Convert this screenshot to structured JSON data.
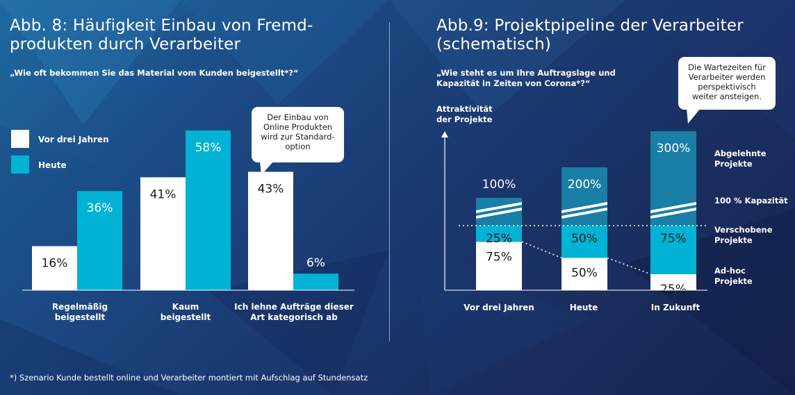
{
  "colors": {
    "white_bar": "#ffffff",
    "cyan_bar": "#00b3d4",
    "dark_cyan_bar": "#1a7ea6",
    "axis": "#ffffff"
  },
  "left": {
    "title": "Abb. 8: Häufigkeit Einbau von Fremd-\nprodukten durch Verarbeiter",
    "subtitle": "„Wie oft bekommen Sie das Material vom Kunden beigestellt*?“",
    "legend": [
      {
        "label": "Vor drei Jahren",
        "color": "#ffffff"
      },
      {
        "label": "Heute",
        "color": "#00b3d4"
      }
    ],
    "bubble": "Der Einbau von\nOnline Produkten\nwird zur Standard-\noption",
    "categories": [
      "Regelmäßig\nbeigestellt",
      "Kaum\nbeigestellt",
      "Ich lehne Aufträge dieser\nArt kategorisch ab"
    ]
  },
  "right": {
    "title": "Abb.9: Projektpipeline der Verarbeiter\n(schematisch)",
    "subtitle": "„Wie steht es um Ihre Auftragslage und\nKapazität in Zeiten von Corona*?“",
    "y_axis_label": "Attraktivität\nder Projekte",
    "bubble": "Die Wartezeiten für\nVerarbeiter werden\nperspektivisch\nweiter ansteigen.",
    "capacity_label": "100 % Kapazität",
    "segment_labels": {
      "abgelehnt": "Abgelehnte\nProjekte",
      "verschoben": "Verschobene\nProjekte",
      "adhoc": "Ad-hoc\nProjekte"
    },
    "categories": [
      "Vor drei Jahren",
      "Heute",
      "In Zukunft"
    ]
  },
  "footnote": "*) Szenario Kunde bestellt online und Verarbeiter montiert mit Aufschlag auf Stundensatz",
  "chart_data": [
    {
      "type": "bar",
      "title": "Abb. 8: Häufigkeit Einbau von Fremdprodukten durch Verarbeiter",
      "categories": [
        "Regelmäßig beigestellt",
        "Kaum beigestellt",
        "Ich lehne Aufträge dieser Art kategorisch ab"
      ],
      "series": [
        {
          "name": "Vor drei Jahren",
          "values": [
            16,
            41,
            43
          ]
        },
        {
          "name": "Heute",
          "values": [
            36,
            58,
            6
          ]
        }
      ],
      "value_labels": {
        "Vor drei Jahren": [
          "16%",
          "41%",
          "43%"
        ],
        "Heute": [
          "36%",
          "58%",
          "6%"
        ]
      },
      "unit": "%",
      "legend": "left",
      "grid": false
    },
    {
      "type": "bar",
      "title": "Abb.9: Projektpipeline der Verarbeiter (schematisch)",
      "stacked": true,
      "categories": [
        "Vor drei Jahren",
        "Heute",
        "In Zukunft"
      ],
      "series": [
        {
          "name": "Ad-hoc Projekte",
          "values": [
            75,
            50,
            25
          ]
        },
        {
          "name": "Verschobene Projekte",
          "values": [
            25,
            50,
            75
          ]
        },
        {
          "name": "Abgelehnte Projekte",
          "values": [
            100,
            200,
            300
          ]
        }
      ],
      "value_labels": {
        "Ad-hoc Projekte": [
          "75%",
          "50%",
          "25%"
        ],
        "Verschobene Projekte": [
          "25%",
          "50%",
          "75%"
        ],
        "Abgelehnte Projekte": [
          "100%",
          "200%",
          "300%"
        ]
      },
      "reference_line": {
        "label": "100 % Kapazität",
        "value": 100
      },
      "unit": "%",
      "grid": false
    }
  ]
}
